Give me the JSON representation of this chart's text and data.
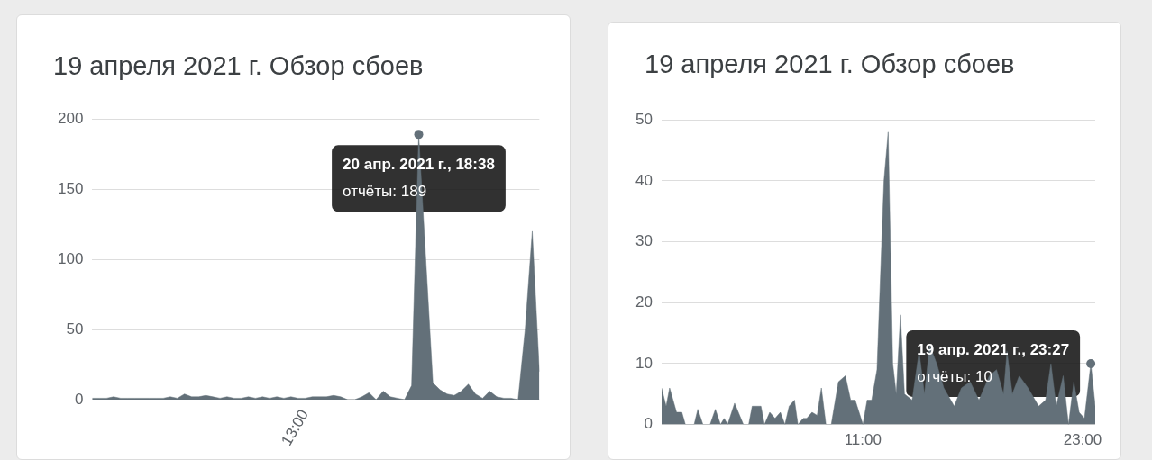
{
  "chart_data": [
    {
      "type": "area",
      "title": "19 апреля 2021 г. Обзор сбоев",
      "categories": [
        null,
        null,
        null,
        null,
        null,
        null,
        null,
        null,
        null,
        null,
        null,
        null,
        null,
        null,
        null,
        null,
        null,
        null,
        null,
        null,
        null,
        null,
        null,
        null,
        null,
        null,
        null,
        null,
        null,
        null,
        "13:00",
        null,
        null,
        null,
        null,
        null,
        null,
        null,
        null,
        null,
        null,
        null,
        null,
        null,
        null,
        null,
        null,
        null,
        null,
        null,
        null,
        null,
        null,
        null,
        null,
        null,
        null,
        null,
        null,
        null,
        null,
        null,
        null,
        null
      ],
      "series": [
        {
          "color": "#637079",
          "values": [
            1,
            1,
            1,
            2,
            1,
            1,
            1,
            1,
            1,
            1,
            1,
            2,
            1,
            4,
            2,
            2,
            3,
            2,
            1,
            2,
            1,
            1,
            2,
            1,
            2,
            1,
            2,
            1,
            2,
            1,
            1,
            2,
            2,
            2,
            3,
            2,
            0,
            0,
            2,
            5,
            0,
            6,
            2,
            1,
            0,
            10,
            189,
            100,
            12,
            7,
            4,
            3,
            6,
            11,
            4,
            1,
            6,
            2,
            1,
            1,
            0,
            50,
            120,
            20
          ]
        }
      ],
      "ylim": [
        0,
        200
      ],
      "yticks": [
        0,
        50,
        100,
        150,
        200
      ],
      "grid": "y",
      "legend": false,
      "marker": "none",
      "annotations": [
        {
          "text": "20 апр. 2021 г., 18:38\nотчёты: 189",
          "y": 189
        }
      ]
    },
    {
      "type": "area",
      "title": "19 апреля 2021 г. Обзор сбоев",
      "x": [
        0.0,
        0.25,
        0.44,
        0.82,
        1.11,
        1.3,
        1.78,
        1.98,
        2.26,
        2.65,
        2.94,
        3.22,
        3.42,
        3.61,
        3.99,
        4.47,
        4.76,
        4.95,
        5.43,
        5.62,
        5.91,
        6.2,
        6.49,
        6.74,
        6.97,
        7.26,
        7.45,
        7.74,
        7.93,
        8.22,
        8.5,
        8.73,
        8.98,
        9.27,
        9.66,
        10.04,
        10.33,
        10.58,
        11.0,
        11.23,
        11.48,
        11.77,
        12.15,
        12.38,
        12.63,
        12.82,
        13.05,
        13.27,
        13.69,
        14.07,
        14.36,
        14.65,
        15.03,
        15.42,
        15.99,
        16.38,
        16.86,
        17.34,
        17.91,
        18.3,
        18.68,
        18.87,
        19.16,
        19.54,
        20.02,
        20.6,
        20.98,
        21.27,
        21.56,
        21.94,
        22.23,
        22.52,
        22.81,
        23.1,
        23.45,
        23.69
      ],
      "series": [
        {
          "color": "#637079",
          "values": [
            6,
            3,
            6,
            2,
            2,
            0,
            0,
            2.5,
            0,
            0,
            2.5,
            0,
            1,
            0,
            3.5,
            0,
            0,
            3,
            3,
            0,
            2,
            1,
            2,
            0,
            3,
            4,
            0,
            1,
            1,
            2,
            1.5,
            6,
            0,
            0,
            7,
            8,
            4,
            4,
            0,
            4,
            4,
            9,
            40,
            48,
            10,
            5,
            18,
            5,
            4,
            12,
            5,
            13,
            10,
            6,
            3,
            6,
            7,
            4,
            8,
            9,
            5,
            12,
            5,
            8,
            6,
            3,
            4,
            10,
            3,
            8,
            0,
            7,
            2,
            1,
            10,
            3
          ]
        }
      ],
      "xlim": [
        0,
        23.69
      ],
      "xticks": [
        {
          "value": 11,
          "label": "11:00"
        },
        {
          "value": 23,
          "label": "23:00"
        }
      ],
      "ylim": [
        0,
        50
      ],
      "yticks": [
        0,
        10,
        20,
        30,
        40,
        50
      ],
      "grid": "y",
      "legend": false,
      "marker": "none",
      "annotations": [
        {
          "text": "19 апр. 2021 г., 23:27\nотчёты: 10",
          "x": 23.45,
          "y": 10
        }
      ]
    }
  ]
}
